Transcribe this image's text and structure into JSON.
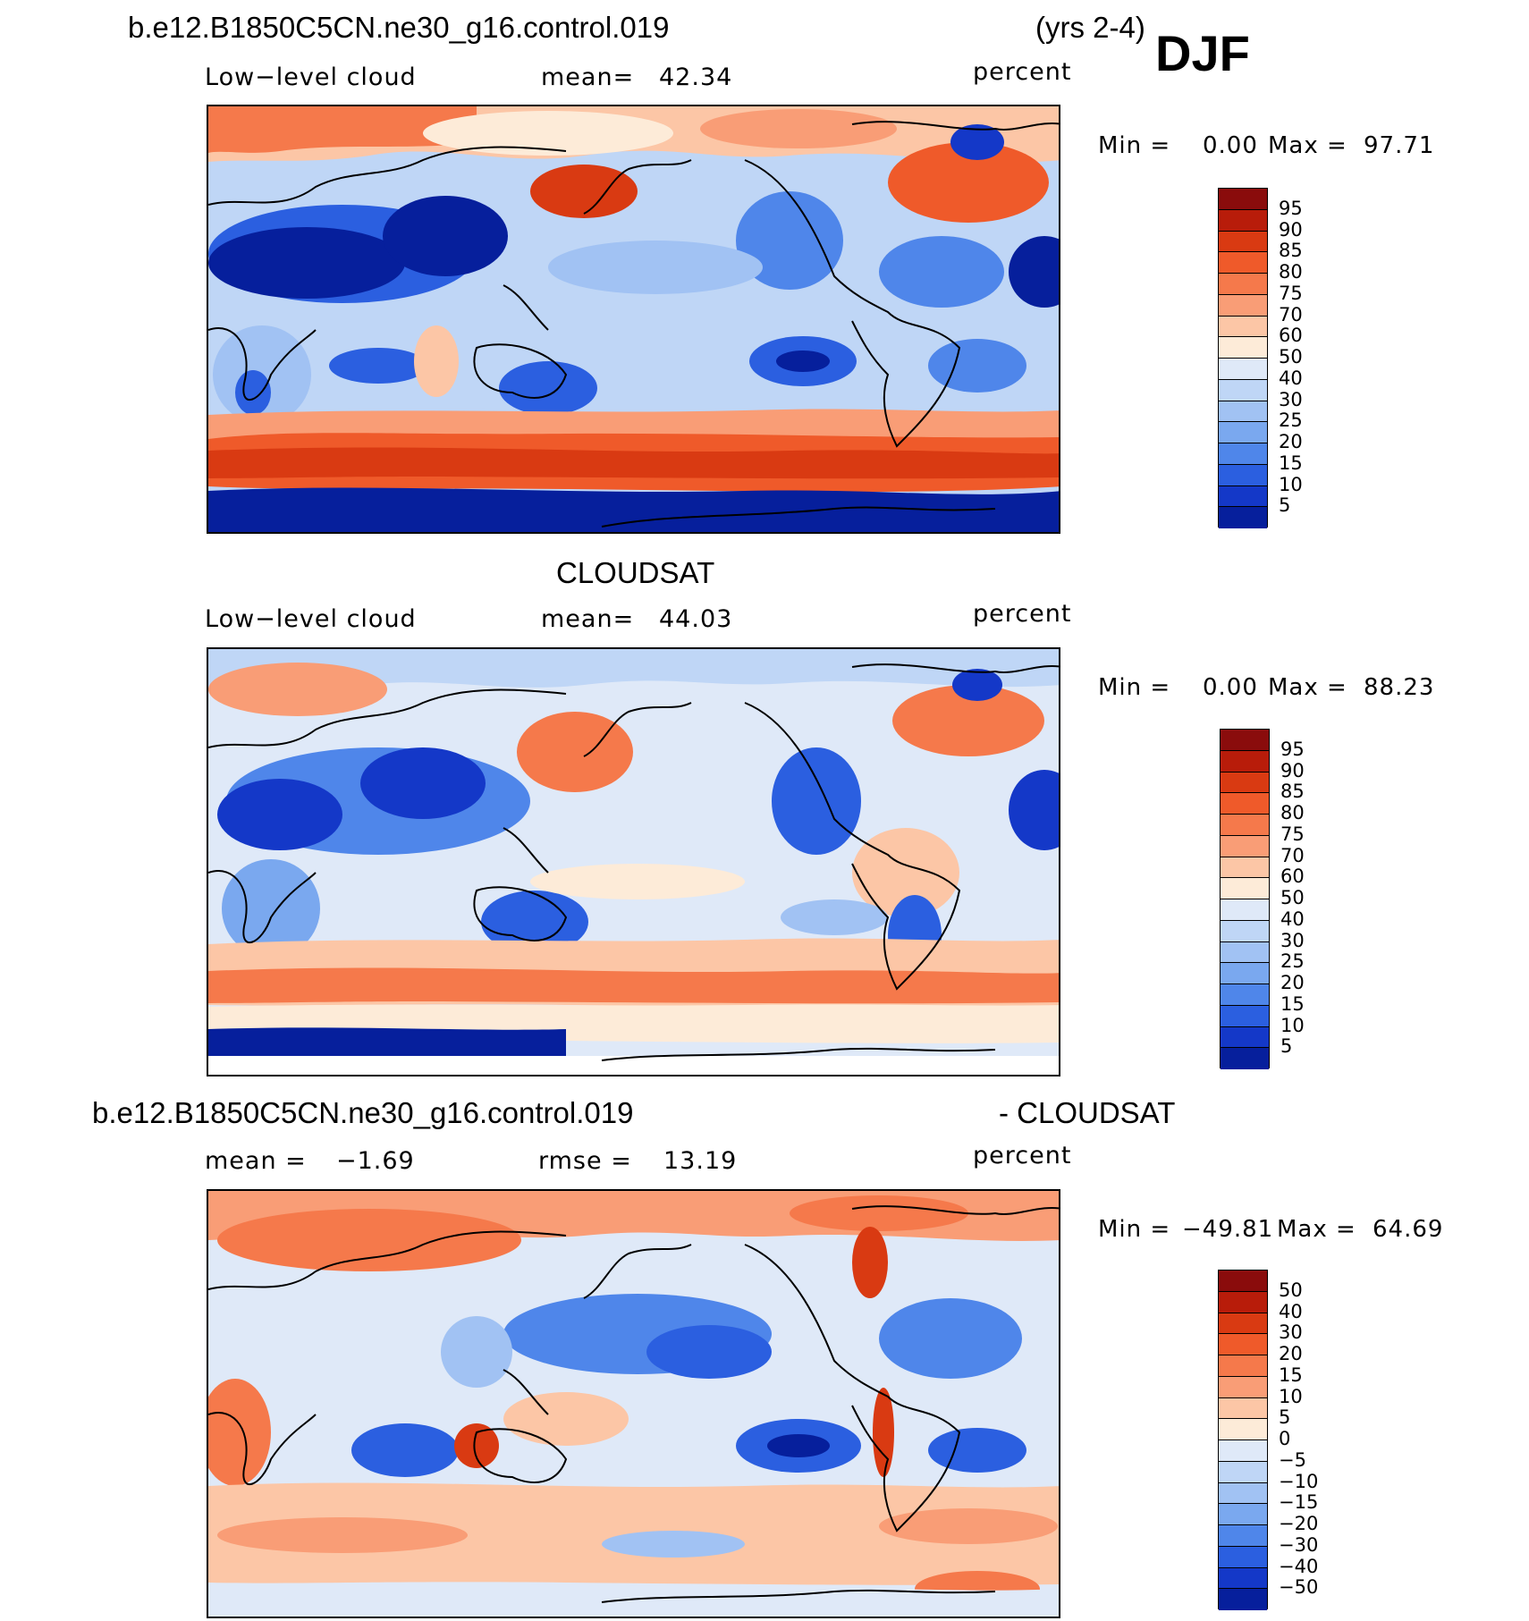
{
  "header": {
    "case_name": "b.e12.B1850C5CN.ne30_g16.control.019",
    "years": "(yrs 2-4)",
    "season": "DJF"
  },
  "chart_data": [
    {
      "type": "heatmap",
      "title": "",
      "variable_label": "Low−level cloud",
      "mean_label": "mean=",
      "mean_value": "42.34",
      "units": "percent",
      "min_label": "Min =",
      "min_value": "0.00",
      "max_label": "Max =",
      "max_value": "97.71",
      "colorbar_levels": [
        "95",
        "90",
        "85",
        "80",
        "75",
        "70",
        "60",
        "50",
        "40",
        "30",
        "25",
        "20",
        "15",
        "10",
        "5"
      ],
      "colorbar_colors": [
        "#8a0c0c",
        "#b81c0a",
        "#d93a12",
        "#ef5a2a",
        "#f5794b",
        "#f99d76",
        "#fcc6a6",
        "#fdebd8",
        "#dfe9f8",
        "#bfd6f6",
        "#a1c2f3",
        "#7aa8ef",
        "#4f86ea",
        "#2b5fe0",
        "#1438c8",
        "#061f9c"
      ]
    },
    {
      "type": "heatmap",
      "title": "CLOUDSAT",
      "variable_label": "Low−level cloud",
      "mean_label": "mean=",
      "mean_value": "44.03",
      "units": "percent",
      "min_label": "Min =",
      "min_value": "0.00",
      "max_label": "Max =",
      "max_value": "88.23",
      "colorbar_levels": [
        "95",
        "90",
        "85",
        "80",
        "75",
        "70",
        "60",
        "50",
        "40",
        "30",
        "25",
        "20",
        "15",
        "10",
        "5"
      ],
      "colorbar_colors": [
        "#8a0c0c",
        "#b81c0a",
        "#d93a12",
        "#ef5a2a",
        "#f5794b",
        "#f99d76",
        "#fcc6a6",
        "#fdebd8",
        "#dfe9f8",
        "#bfd6f6",
        "#a1c2f3",
        "#7aa8ef",
        "#4f86ea",
        "#2b5fe0",
        "#1438c8",
        "#061f9c"
      ]
    },
    {
      "type": "heatmap",
      "title_left": "b.e12.B1850C5CN.ne30_g16.control.019",
      "title_right": "- CLOUDSAT",
      "mean_label": "mean =",
      "mean_value": "−1.69",
      "rmse_label": "rmse =",
      "rmse_value": "13.19",
      "units": "percent",
      "min_label": "Min =",
      "min_value": "−49.81",
      "max_label": "Max =",
      "max_value": "64.69",
      "colorbar_levels": [
        "50",
        "40",
        "30",
        "20",
        "15",
        "10",
        "5",
        "0",
        "−5",
        "−10",
        "−15",
        "−20",
        "−30",
        "−40",
        "−50"
      ],
      "colorbar_colors": [
        "#8a0c0c",
        "#b81c0a",
        "#d93a12",
        "#ef5a2a",
        "#f5794b",
        "#f99d76",
        "#fcc6a6",
        "#fdebd8",
        "#dfe9f8",
        "#bfd6f6",
        "#a1c2f3",
        "#7aa8ef",
        "#4f86ea",
        "#2b5fe0",
        "#1438c8",
        "#061f9c"
      ]
    }
  ]
}
